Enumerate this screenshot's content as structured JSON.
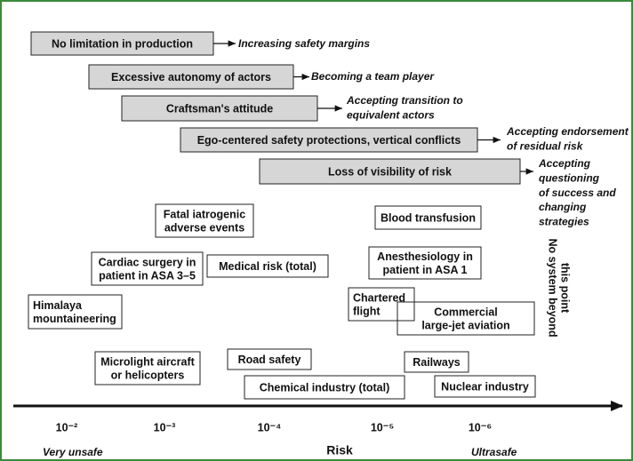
{
  "barriers": [
    {
      "label": "No limitation in production",
      "outcome": [
        "Increasing safety margins"
      ]
    },
    {
      "label": "Excessive autonomy of actors",
      "outcome": [
        "Becoming a team player"
      ]
    },
    {
      "label": "Craftsman's attitude",
      "outcome": [
        "Accepting transition to",
        "equivalent actors"
      ]
    },
    {
      "label": "Ego-centered safety protections, vertical conflicts",
      "outcome": [
        "Accepting endorsement",
        "of residual risk"
      ]
    },
    {
      "label": "Loss of visibility of risk",
      "outcome": [
        "Accepting",
        "questioning",
        "of success and",
        "changing",
        "strategies"
      ]
    }
  ],
  "boxes": [
    {
      "lines": [
        "Fatal iatrogenic",
        "adverse events"
      ]
    },
    {
      "lines": [
        "Blood transfusion"
      ]
    },
    {
      "lines": [
        "Cardiac surgery in",
        "patient in ASA 3–5"
      ]
    },
    {
      "lines": [
        "Medical risk (total)"
      ]
    },
    {
      "lines": [
        "Anesthesiology in",
        "patient in ASA 1"
      ]
    },
    {
      "lines": [
        "Himalaya",
        "mountaineering"
      ]
    },
    {
      "lines": [
        "Chartered",
        "flight"
      ]
    },
    {
      "lines": [
        "Commercial",
        "large-jet aviation"
      ]
    },
    {
      "lines": [
        "Microlight aircraft",
        "or helicopters"
      ]
    },
    {
      "lines": [
        "Road safety"
      ]
    },
    {
      "lines": [
        "Railways"
      ]
    },
    {
      "lines": [
        "Chemical industry (total)"
      ]
    },
    {
      "lines": [
        "Nuclear industry"
      ]
    }
  ],
  "limit_note": [
    "No system beyond",
    "this point"
  ],
  "axis": {
    "ticks": [
      "10⁻²",
      "10⁻³",
      "10⁻⁴",
      "10⁻⁵",
      "10⁻⁶"
    ],
    "left": "Very unsafe",
    "title": "Risk",
    "right": "Ultrasafe"
  }
}
